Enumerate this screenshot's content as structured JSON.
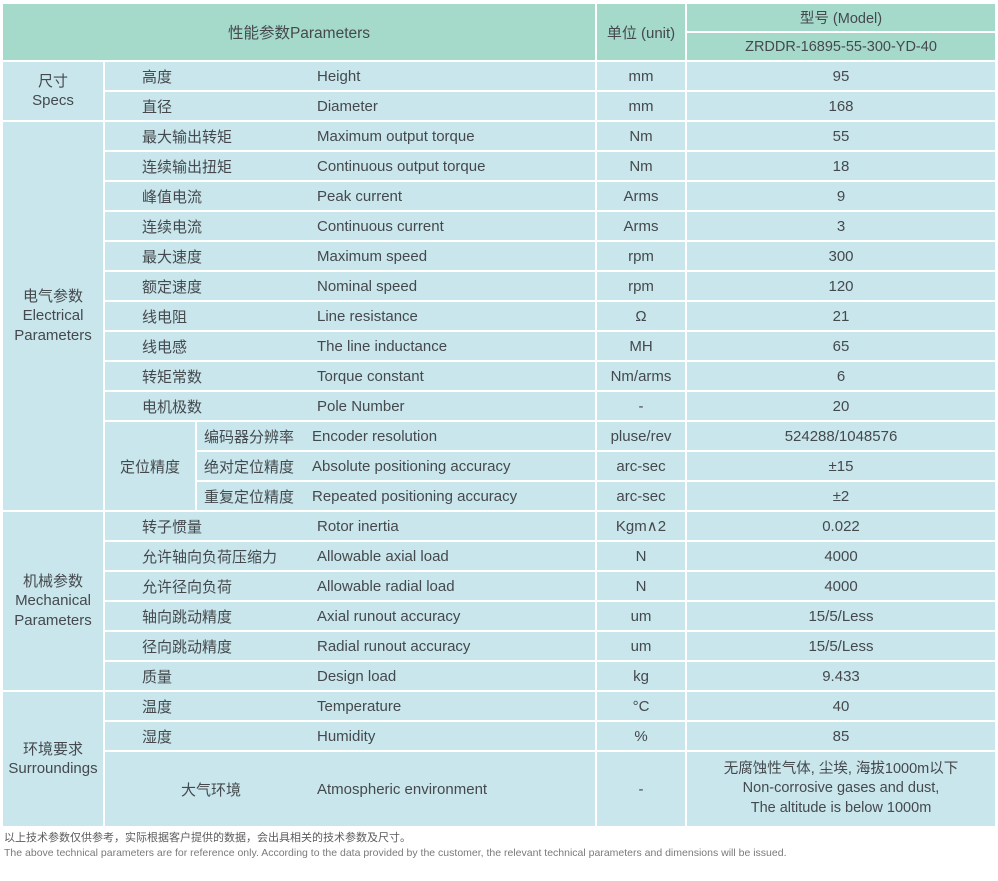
{
  "header": {
    "parameters": "性能参数Parameters",
    "unit": "单位 (unit)",
    "model_label": "型号 (Model)",
    "model_value": "ZRDDR-16895-55-300-YD-40"
  },
  "colors": {
    "header_bg": "#a5d9ca",
    "row_bg": "#c8e6ec",
    "text": "#45494d"
  },
  "sections": [
    {
      "name_cn": "尺寸",
      "name_en": "Specs",
      "rows": [
        {
          "cn": "高度",
          "en": "Height",
          "unit": "mm",
          "value": "95"
        },
        {
          "cn": "直径",
          "en": "Diameter",
          "unit": "mm",
          "value": "168"
        }
      ]
    },
    {
      "name_cn": "电气参数",
      "name_en": "Electrical Parameters",
      "rows": [
        {
          "cn": "最大输出转矩",
          "en": "Maximum output torque",
          "unit": "Nm",
          "value": "55"
        },
        {
          "cn": "连续输出扭矩",
          "en": "Continuous output torque",
          "unit": "Nm",
          "value": "18"
        },
        {
          "cn": "峰值电流",
          "en": "Peak current",
          "unit": "Arms",
          "value": "9"
        },
        {
          "cn": "连续电流",
          "en": "Continuous current",
          "unit": "Arms",
          "value": "3"
        },
        {
          "cn": "最大速度",
          "en": "Maximum speed",
          "unit": "rpm",
          "value": "300"
        },
        {
          "cn": "额定速度",
          "en": "Nominal speed",
          "unit": "rpm",
          "value": "120"
        },
        {
          "cn": "线电阻",
          "en": "Line resistance",
          "unit": "Ω",
          "value": "21"
        },
        {
          "cn": "线电感",
          "en": "The line inductance",
          "unit": "MH",
          "value": "65"
        },
        {
          "cn": "转矩常数",
          "en": "Torque constant",
          "unit": "Nm/arms",
          "value": "6"
        },
        {
          "cn": "电机极数",
          "en": "Pole Number",
          "unit": "-",
          "value": "20"
        }
      ],
      "subgroup": {
        "label": "定位精度",
        "rows": [
          {
            "cn": "编码器分辨率",
            "en": "Encoder resolution",
            "unit": "pluse/rev",
            "value": "524288/1048576"
          },
          {
            "cn": "绝对定位精度",
            "en": "Absolute positioning accuracy",
            "unit": "arc-sec",
            "value": "±15"
          },
          {
            "cn": "重复定位精度",
            "en": "Repeated positioning accuracy",
            "unit": "arc-sec",
            "value": "±2"
          }
        ]
      }
    },
    {
      "name_cn": "机械参数",
      "name_en": "Mechanical Parameters",
      "rows": [
        {
          "cn": "转子惯量",
          "en": "Rotor inertia",
          "unit": "Kgm∧2",
          "value": "0.022"
        },
        {
          "cn": "允许轴向负荷压缩力",
          "en": "Allowable axial load",
          "unit": "N",
          "value": "4000"
        },
        {
          "cn": "允许径向负荷",
          "en": "Allowable radial load",
          "unit": "N",
          "value": "4000"
        },
        {
          "cn": "轴向跳动精度",
          "en": "Axial runout accuracy",
          "unit": "um",
          "value": "15/5/Less"
        },
        {
          "cn": "径向跳动精度",
          "en": "Radial runout accuracy",
          "unit": "um",
          "value": "15/5/Less"
        },
        {
          "cn": "质量",
          "en": "Design load",
          "unit": "kg",
          "value": "9.433"
        }
      ]
    },
    {
      "name_cn": "环境要求",
      "name_en": "Surroundings",
      "rows": [
        {
          "cn": "温度",
          "en": "Temperature",
          "unit": "°C",
          "value": "40"
        },
        {
          "cn": "湿度",
          "en": "Humidity",
          "unit": "%",
          "value": "85"
        }
      ],
      "tall_row": {
        "cn": "大气环境",
        "en": "Atmospheric environment",
        "unit": "-",
        "value_lines": [
          "无腐蚀性气体, 尘埃, 海拔1000m以下",
          "Non-corrosive gases and dust,",
          "The altitude is below 1000m"
        ]
      }
    }
  ],
  "footnotes": {
    "cn": "以上技术参数仅供参考，实际根据客户提供的数据，会出具相关的技术参数及尺寸。",
    "en": "The above technical parameters are for reference only. According to the data provided by the customer, the relevant technical parameters and dimensions will be issued."
  }
}
